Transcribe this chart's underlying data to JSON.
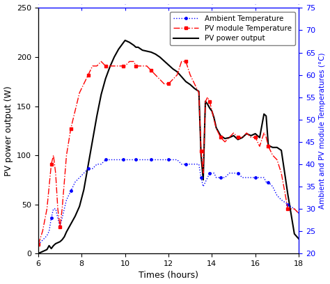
{
  "xlabel": "Times (hours)",
  "ylabel_left": "PV power output (W)",
  "ylabel_right": "Ambient and PV module Temperatures (°C)",
  "xlim": [
    6,
    18
  ],
  "ylim_left": [
    0,
    250
  ],
  "ylim_right": [
    20,
    75
  ],
  "xticks": [
    6,
    8,
    10,
    12,
    14,
    16,
    18
  ],
  "yticks_left": [
    0,
    50,
    100,
    150,
    200,
    250
  ],
  "yticks_right": [
    20,
    25,
    30,
    35,
    40,
    45,
    50,
    55,
    60,
    65,
    70,
    75
  ],
  "legend_entries": [
    "Ambient Temperature",
    "PV module Temperature",
    "PV power output"
  ],
  "time": [
    6.0,
    6.2,
    6.4,
    6.5,
    6.6,
    6.7,
    6.8,
    6.9,
    7.0,
    7.1,
    7.2,
    7.3,
    7.5,
    7.7,
    7.9,
    8.1,
    8.3,
    8.5,
    8.7,
    8.9,
    9.1,
    9.3,
    9.5,
    9.7,
    9.9,
    10.0,
    10.2,
    10.4,
    10.5,
    10.6,
    10.8,
    11.0,
    11.2,
    11.4,
    11.6,
    11.8,
    12.0,
    12.2,
    12.4,
    12.6,
    12.8,
    13.0,
    13.2,
    13.4,
    13.5,
    13.6,
    13.7,
    13.8,
    13.9,
    14.0,
    14.1,
    14.2,
    14.4,
    14.6,
    14.8,
    15.0,
    15.2,
    15.4,
    15.6,
    15.8,
    16.0,
    16.2,
    16.4,
    16.5,
    16.6,
    16.8,
    17.0,
    17.2,
    17.5,
    17.8,
    18.0
  ],
  "pv_power": [
    0,
    2,
    4,
    8,
    5,
    8,
    10,
    11,
    12,
    14,
    17,
    22,
    30,
    38,
    48,
    65,
    90,
    115,
    140,
    162,
    178,
    190,
    200,
    208,
    214,
    217,
    215,
    212,
    210,
    210,
    207,
    206,
    205,
    203,
    200,
    196,
    192,
    188,
    185,
    180,
    175,
    172,
    168,
    165,
    100,
    75,
    155,
    152,
    148,
    145,
    138,
    128,
    120,
    117,
    118,
    120,
    116,
    118,
    122,
    120,
    122,
    118,
    142,
    140,
    110,
    108,
    108,
    105,
    60,
    20,
    15
  ],
  "amb_temp": [
    22,
    23,
    24,
    25,
    28,
    30,
    30,
    28,
    26,
    28,
    30,
    32,
    34,
    36,
    37,
    38,
    39,
    39,
    40,
    40,
    41,
    41,
    41,
    41,
    41,
    41,
    41,
    41,
    41,
    41,
    41,
    41,
    41,
    41,
    41,
    41,
    41,
    41,
    41,
    40,
    40,
    40,
    40,
    40,
    37,
    35,
    36,
    37,
    38,
    38,
    38,
    37,
    37,
    37,
    38,
    38,
    38,
    37,
    37,
    37,
    37,
    37,
    37,
    36,
    36,
    35,
    33,
    32,
    31,
    30,
    29
  ],
  "pv_module_temp": [
    22,
    25,
    30,
    35,
    40,
    42,
    38,
    30,
    26,
    30,
    36,
    42,
    48,
    52,
    56,
    58,
    60,
    62,
    62,
    63,
    62,
    62,
    62,
    62,
    62,
    62,
    63,
    63,
    62,
    62,
    62,
    62,
    61,
    60,
    59,
    58,
    58,
    59,
    60,
    63,
    63,
    60,
    58,
    56,
    43,
    38,
    54,
    55,
    54,
    52,
    50,
    48,
    46,
    45,
    46,
    47,
    46,
    46,
    47,
    46,
    46,
    44,
    47,
    46,
    44,
    42,
    41,
    38,
    30,
    30,
    29
  ]
}
